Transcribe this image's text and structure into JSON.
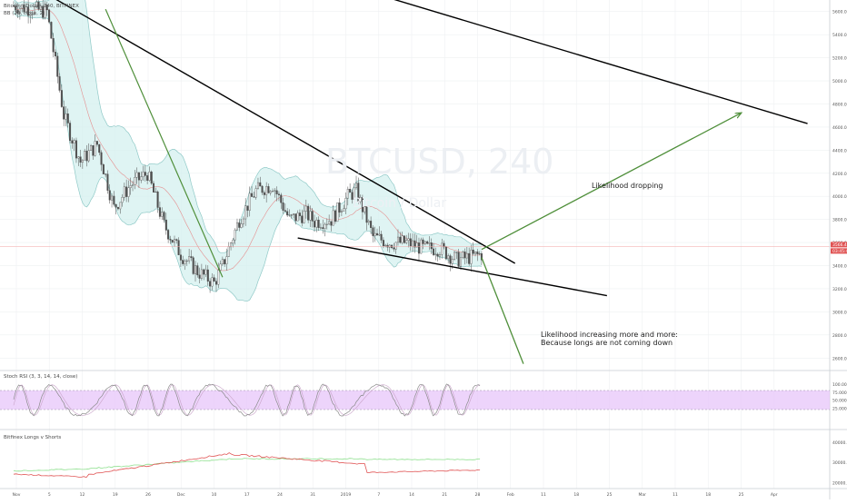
{
  "header": {
    "symbol_line": "Bitcoin / Dollar, 240, BITFINEX",
    "bb_line": "BB (20, close, 2)",
    "watermark_symbol": "BTCUSD, 240",
    "watermark_desc": "Bitcoin / Dollar"
  },
  "annotations": {
    "up_label": "Likelihood dropping",
    "down_label_line1": "Likelihood increasing more and more:",
    "down_label_line2": "Because longs are not coming down"
  },
  "colors": {
    "candle": "#4e4e4e",
    "bb_fill": "#d4f0ef",
    "bb_band": "#8fc9c7",
    "bb_basis": "#e58e8e",
    "trendline": "#000000",
    "arrow_green": "#4f8f3a",
    "price_line": "#f2a3a3",
    "rsi_band": "#e7c6fa",
    "rsi_line": "#8a8a8a",
    "longs_line": "#8fe08f",
    "shorts_line": "#e05353"
  },
  "chart_data": [
    {
      "type": "candlestick",
      "title": "Bitcoin / Dollar, 240, BITFINEX",
      "price_axis_labels": [
        "5600.0",
        "5400.0",
        "5200.0",
        "5000.0",
        "4800.0",
        "4600.0",
        "4400.0",
        "4200.0",
        "4000.0",
        "3800.0",
        "3600.0",
        "3400.0",
        "3200.0",
        "3000.0",
        "2800.0",
        "2600.0"
      ],
      "current_price_labels": [
        "3566.4",
        "03:45:46"
      ],
      "ylim": [
        2500,
        5700
      ],
      "x_tick_labels": [
        "Nov",
        "5",
        "12",
        "19",
        "26",
        "Dec",
        "10",
        "17",
        "24",
        "31",
        "2019",
        "7",
        "14",
        "21",
        "28",
        "Feb",
        "11",
        "18",
        "25",
        "Mar",
        "11",
        "18",
        "25",
        "Apr"
      ],
      "close_path": [
        {
          "x": 0,
          "y": 5650
        },
        {
          "x": 4,
          "y": 5600
        },
        {
          "x": 6,
          "y": 4700
        },
        {
          "x": 8,
          "y": 4300
        },
        {
          "x": 10,
          "y": 4450
        },
        {
          "x": 12,
          "y": 3900
        },
        {
          "x": 14,
          "y": 4100
        },
        {
          "x": 16,
          "y": 4200
        },
        {
          "x": 18,
          "y": 3750
        },
        {
          "x": 20,
          "y": 3500
        },
        {
          "x": 22,
          "y": 3350
        },
        {
          "x": 24,
          "y": 3250
        },
        {
          "x": 25,
          "y": 3400
        },
        {
          "x": 27,
          "y": 3800
        },
        {
          "x": 29,
          "y": 4050
        },
        {
          "x": 31,
          "y": 4100
        },
        {
          "x": 33,
          "y": 3800
        },
        {
          "x": 35,
          "y": 3850
        },
        {
          "x": 36,
          "y": 3780
        },
        {
          "x": 38,
          "y": 3800
        },
        {
          "x": 40,
          "y": 4000
        },
        {
          "x": 41,
          "y": 4050
        },
        {
          "x": 43,
          "y": 3650
        },
        {
          "x": 45,
          "y": 3600
        },
        {
          "x": 47,
          "y": 3600
        },
        {
          "x": 49,
          "y": 3550
        },
        {
          "x": 51,
          "y": 3550
        },
        {
          "x": 53,
          "y": 3450
        },
        {
          "x": 55,
          "y": 3480
        },
        {
          "x": 56,
          "y": 3500
        }
      ],
      "drawings": [
        {
          "kind": "trendline",
          "from": {
            "x": 4,
            "y": 5750
          },
          "to": {
            "x": 60,
            "y": 3420
          }
        },
        {
          "kind": "trendline",
          "from": {
            "x": 34,
            "y": 3640
          },
          "to": {
            "x": 71,
            "y": 3140
          }
        },
        {
          "kind": "trendline",
          "from": {
            "x": 43,
            "y": 5760
          },
          "to": {
            "x": 95,
            "y": 4630
          }
        },
        {
          "kind": "trendline",
          "from": {
            "x": 11,
            "y": 5620
          },
          "to": {
            "x": 25,
            "y": 3300
          }
        },
        {
          "kind": "arrow",
          "from": {
            "x": 56,
            "y": 3540
          },
          "to": {
            "x": 87,
            "y": 4720
          }
        },
        {
          "kind": "arrow",
          "from": {
            "x": 56,
            "y": 3470
          },
          "to": {
            "x": 61,
            "y": 2550
          }
        }
      ]
    },
    {
      "type": "line",
      "title": "Stoch RSI (3, 3, 14, 14, close)",
      "axis_labels": [
        "100.0000",
        "75.0000",
        "50.0000",
        "25.0000"
      ],
      "ylim": [
        0,
        100
      ],
      "band": [
        20,
        80
      ]
    },
    {
      "type": "line",
      "title": "Bitfinex Longs v Shorts",
      "axis_labels": [
        "40000.0",
        "30000.0",
        "20000.0"
      ],
      "series": [
        {
          "key": "longs",
          "color": "#8fe08f"
        },
        {
          "key": "shorts",
          "color": "#e05353"
        }
      ]
    }
  ]
}
